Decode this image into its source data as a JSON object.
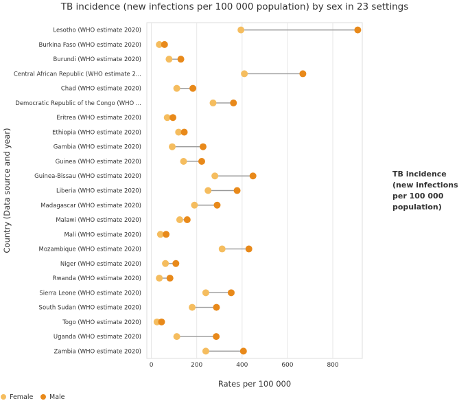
{
  "chart_data": {
    "type": "dumbbell",
    "title": "TB incidence (new infections per 100 000 population) by sex in 23 settings",
    "xlabel": "Rates per 100 000",
    "ylabel": "Country (Data source and year)",
    "side_title": [
      "TB incidence",
      "(new infections",
      "per 100 000",
      "population)"
    ],
    "xlim": [
      -20,
      930
    ],
    "xticks": [
      0,
      200,
      400,
      600,
      800
    ],
    "grid": true,
    "legend_position": "bottom-left",
    "categories": [
      "Lesotho (WHO estimate 2020)",
      "Burkina Faso (WHO estimate 2020)",
      "Burundi (WHO estimate 2020)",
      "Central African Republic (WHO estimate 2...",
      "Chad (WHO estimate 2020)",
      "Democratic Republic of the Congo (WHO ...",
      "Eritrea (WHO estimate 2020)",
      "Ethiopia (WHO estimate 2020)",
      "Gambia (WHO estimate 2020)",
      "Guinea (WHO estimate 2020)",
      "Guinea-Bissau (WHO estimate 2020)",
      "Liberia (WHO estimate 2020)",
      "Madagascar (WHO estimate 2020)",
      "Malawi (WHO estimate 2020)",
      "Mali (WHO estimate 2020)",
      "Mozambique (WHO estimate 2020)",
      "Niger (WHO estimate 2020)",
      "Rwanda (WHO estimate 2020)",
      "Sierra Leone (WHO estimate 2020)",
      "South Sudan (WHO estimate 2020)",
      "Togo (WHO estimate 2020)",
      "Uganda (WHO estimate 2020)",
      "Zambia (WHO estimate 2020)"
    ],
    "series": [
      {
        "name": "Female",
        "color": "#f5bd5f",
        "values": [
          395,
          35,
          78,
          410,
          112,
          272,
          70,
          120,
          92,
          142,
          280,
          250,
          190,
          125,
          40,
          312,
          62,
          35,
          240,
          180,
          25,
          112,
          240
        ]
      },
      {
        "name": "Male",
        "color": "#e8891a",
        "values": [
          910,
          58,
          130,
          668,
          183,
          362,
          95,
          145,
          228,
          222,
          448,
          378,
          290,
          158,
          65,
          430,
          108,
          82,
          352,
          287,
          45,
          286,
          406
        ]
      }
    ],
    "connector_color": "#999999"
  }
}
